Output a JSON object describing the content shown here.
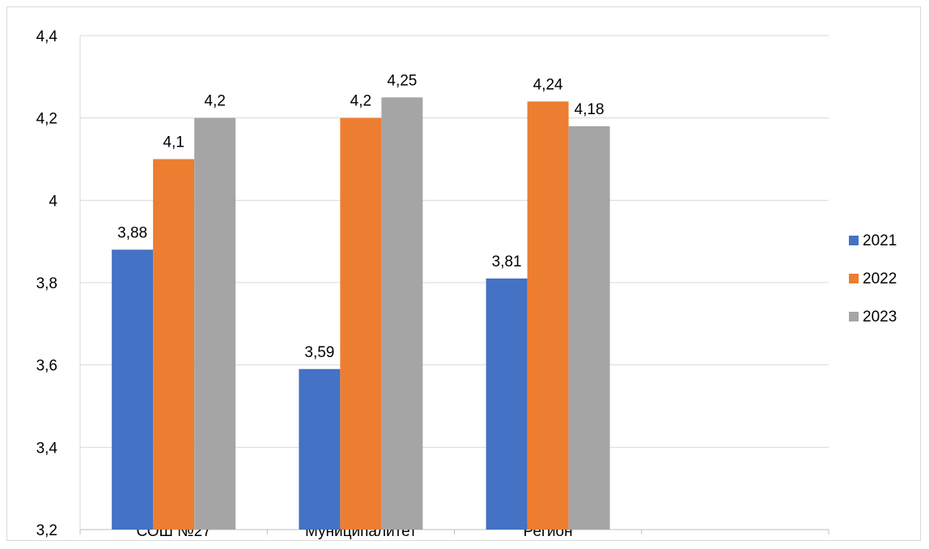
{
  "chart_data": {
    "type": "bar",
    "title": "",
    "xlabel": "",
    "ylabel": "",
    "categories": [
      "СОШ №27",
      "Муниципалитет",
      "Регион"
    ],
    "series": [
      {
        "name": "2021",
        "values": [
          3.88,
          3.59,
          3.81
        ],
        "labels": [
          "3,88",
          "3,59",
          "3,81"
        ],
        "color": "#4472c4"
      },
      {
        "name": "2022",
        "values": [
          4.1,
          4.2,
          4.24
        ],
        "labels": [
          "4,1",
          "4,2",
          "4,24"
        ],
        "color": "#ed7d31"
      },
      {
        "name": "2023",
        "values": [
          4.2,
          4.25,
          4.18
        ],
        "labels": [
          "4,2",
          "4,25",
          "4,18"
        ],
        "color": "#a5a5a5"
      }
    ],
    "ylim": [
      3.2,
      4.4
    ],
    "yticks": [
      3.2,
      3.4,
      3.6,
      3.8,
      4.0,
      4.2,
      4.4
    ],
    "ytick_labels": [
      "3,2",
      "3,4",
      "3,6",
      "3,8",
      "4",
      "4,2",
      "4,4"
    ],
    "grid": true,
    "legend": "right"
  }
}
